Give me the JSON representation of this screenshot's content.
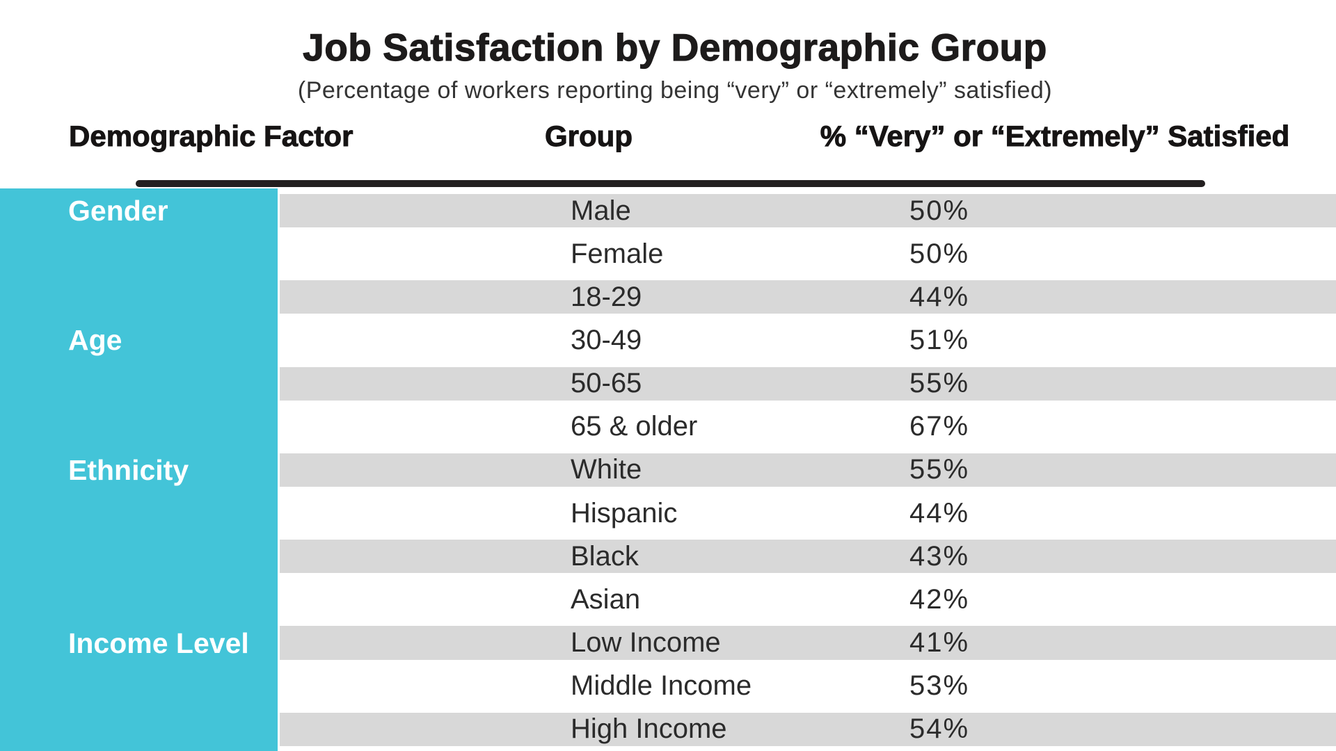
{
  "chart_data": {
    "type": "table",
    "title": "Job Satisfaction by Demographic Group",
    "subtitle": "(Percentage of workers reporting being “very” or “extremely” satisfied)",
    "columns": [
      "Demographic Factor",
      "Group",
      "% “Very” or “Extremely” Satisfied"
    ],
    "rows": [
      {
        "factor": "Gender",
        "group": "Male",
        "value": "50%",
        "striped": true
      },
      {
        "group": "Female",
        "value": "50%",
        "striped": false
      },
      {
        "group": "18-29",
        "value": "44%",
        "striped": true
      },
      {
        "factor": "Age",
        "group": "30-49",
        "value": "51%",
        "striped": false
      },
      {
        "group": "50-65",
        "value": "55%",
        "striped": true
      },
      {
        "group": "65 & older",
        "value": "67%",
        "striped": false
      },
      {
        "factor": "Ethnicity",
        "group": "White",
        "value": "55%",
        "striped": true
      },
      {
        "group": "Hispanic",
        "value": "44%",
        "striped": false
      },
      {
        "group": "Black",
        "value": "43%",
        "striped": true
      },
      {
        "group": "Asian",
        "value": "42%",
        "striped": false
      },
      {
        "factor": "Income Level",
        "group": "Low Income",
        "value": "41%",
        "striped": true
      },
      {
        "group": "Middle Income",
        "value": "53%",
        "striped": false
      },
      {
        "group": "High Income",
        "value": "54%",
        "striped": true
      }
    ],
    "colors": {
      "page_bg": "#ffffff",
      "factor_column": "#43c4d8",
      "factor_text": "#ffffff",
      "stripe": "#d8d8d8",
      "rule": "#231f20",
      "text": "#2b2b2b"
    },
    "layout_hints": {
      "striped_rows": "first and every other row",
      "stripes_full_width_right": true,
      "legend": "none",
      "grid": "off"
    }
  }
}
